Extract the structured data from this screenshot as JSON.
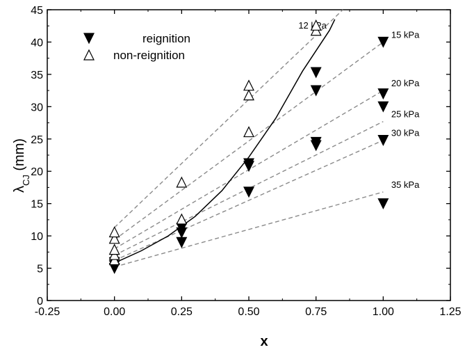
{
  "chart_data": {
    "type": "scatter",
    "xlabel": "x",
    "ylabel_main": "λ",
    "ylabel_sub": "CJ",
    "ylabel_unit": " (mm)",
    "xlim": [
      -0.25,
      1.25
    ],
    "ylim": [
      0,
      45
    ],
    "xticks": [
      "-0.25",
      "0.00",
      "0.25",
      "0.50",
      "0.75",
      "1.00",
      "1.25"
    ],
    "yticks": [
      "0",
      "5",
      "10",
      "15",
      "20",
      "25",
      "30",
      "35",
      "40",
      "45"
    ],
    "grid": false,
    "legend_position": "top-left",
    "series": [
      {
        "name": "reignition",
        "marker": "filled-down-triangle",
        "points": [
          [
            0.0,
            5.0
          ],
          [
            0.0,
            5.4
          ],
          [
            0.0,
            5.9
          ],
          [
            0.25,
            9.0
          ],
          [
            0.25,
            10.5
          ],
          [
            0.25,
            11.2
          ],
          [
            0.5,
            16.8
          ],
          [
            0.5,
            20.8
          ],
          [
            0.5,
            21.2
          ],
          [
            0.75,
            24.0
          ],
          [
            0.75,
            24.5
          ],
          [
            0.75,
            32.5
          ],
          [
            0.75,
            35.3
          ],
          [
            1.0,
            15.0
          ],
          [
            1.0,
            24.8
          ],
          [
            1.0,
            30.0
          ],
          [
            1.0,
            32.0
          ],
          [
            1.0,
            40.0
          ]
        ]
      },
      {
        "name": "non-reignition",
        "marker": "open-up-triangle",
        "points": [
          [
            0.0,
            6.3
          ],
          [
            0.0,
            7.1
          ],
          [
            0.0,
            7.9
          ],
          [
            0.0,
            9.6
          ],
          [
            0.0,
            10.6
          ],
          [
            0.25,
            12.6
          ],
          [
            0.25,
            18.3
          ],
          [
            0.5,
            26.1
          ],
          [
            0.5,
            31.8
          ],
          [
            0.5,
            33.3
          ],
          [
            0.75,
            41.8
          ],
          [
            0.75,
            42.6
          ]
        ]
      }
    ],
    "dashed_lines": [
      {
        "label": "12 kPa",
        "x": [
          0.0,
          0.85
        ],
        "y": [
          11.3,
          45.0
        ]
      },
      {
        "label": "15 kPa",
        "x": [
          0.0,
          1.0
        ],
        "y": [
          9.4,
          40.0
        ]
      },
      {
        "label": "20 kPa",
        "x": [
          0.0,
          1.0
        ],
        "y": [
          8.0,
          32.5
        ]
      },
      {
        "label": "25 kPa",
        "x": [
          0.0,
          1.0
        ],
        "y": [
          7.0,
          27.7
        ]
      },
      {
        "label": "30 kPa",
        "x": [
          0.0,
          1.0
        ],
        "y": [
          6.2,
          24.8
        ]
      },
      {
        "label": "35 kPa",
        "x": [
          0.0,
          1.0
        ],
        "y": [
          5.2,
          16.8
        ]
      }
    ],
    "fit_curve": {
      "style": "solid",
      "x": [
        0.0,
        0.1,
        0.2,
        0.3,
        0.4,
        0.5,
        0.6,
        0.7,
        0.8,
        0.82
      ],
      "y": [
        5.8,
        7.7,
        10.0,
        13.0,
        17.0,
        22.2,
        28.2,
        35.5,
        41.8,
        43.5
      ]
    }
  }
}
